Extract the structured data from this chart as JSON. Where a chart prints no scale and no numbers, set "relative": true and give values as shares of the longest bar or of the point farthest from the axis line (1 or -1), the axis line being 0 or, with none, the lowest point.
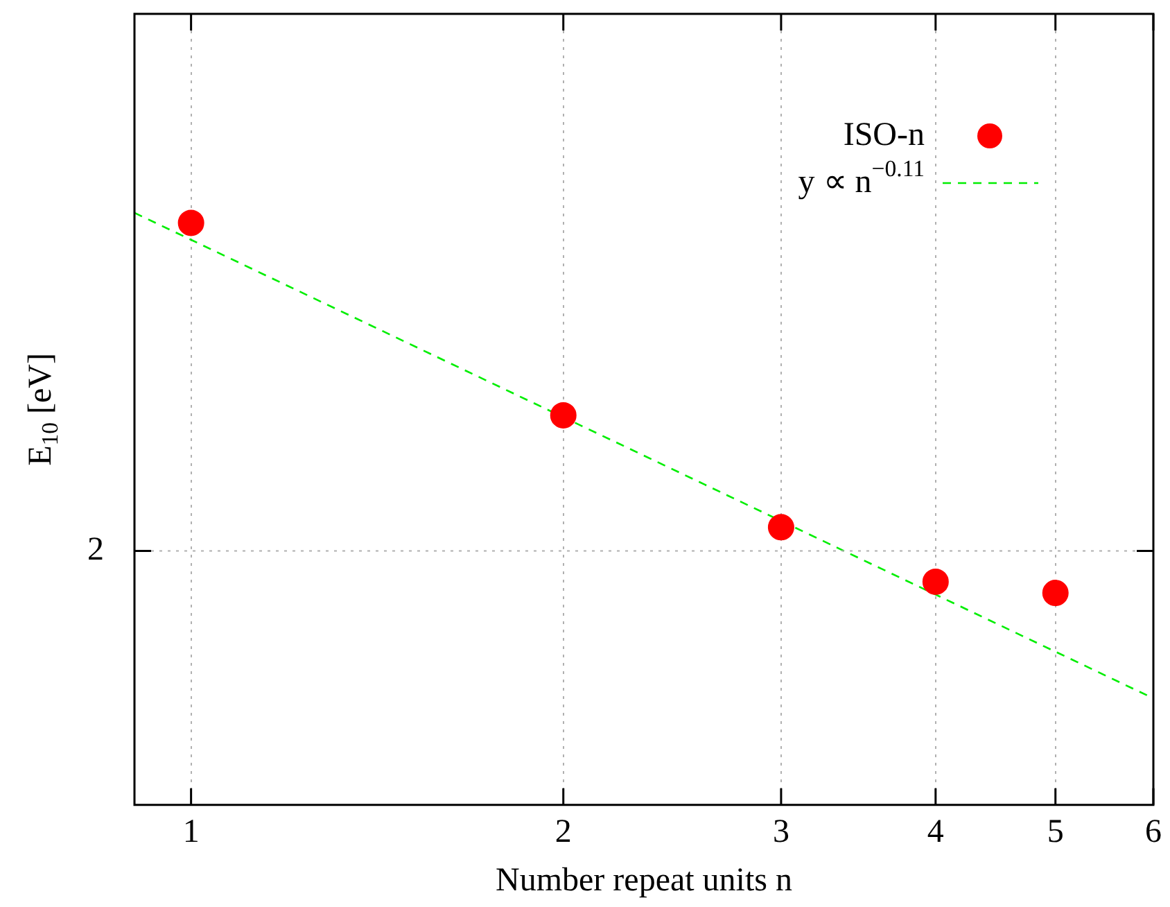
{
  "chart_data": {
    "type": "scatter",
    "xlabel": "Number repeat units n",
    "ylabel": "E$_{10}$ [eV]",
    "relative": true,
    "log": "x",
    "xlim": [
      0.9,
      6
    ],
    "xticks": [
      1,
      2,
      3,
      4,
      5,
      6
    ],
    "grid": "x",
    "legend": "top right",
    "series": [
      {
        "name": "ISO-n",
        "marker": "circle",
        "color": "#ff0000",
        "x": [
          1,
          2,
          3,
          4,
          5
        ],
        "values": [
          0.983,
          0.658,
          0.469,
          0.377,
          0.358
        ]
      },
      {
        "name": "y ∝ n$^{−0.11}$",
        "type": "line",
        "marker": "none",
        "color": "#00ee00",
        "line_style": "dashed",
        "x": [
          0.9,
          6
        ],
        "values": [
          1,
          0.18
        ]
      }
    ],
    "ref_lines": [
      {
        "axis": "y",
        "value": 0.429,
        "color": "#b0b0b0",
        "line_style": "dotted"
      }
    ],
    "annotations": [
      "2"
    ]
  }
}
